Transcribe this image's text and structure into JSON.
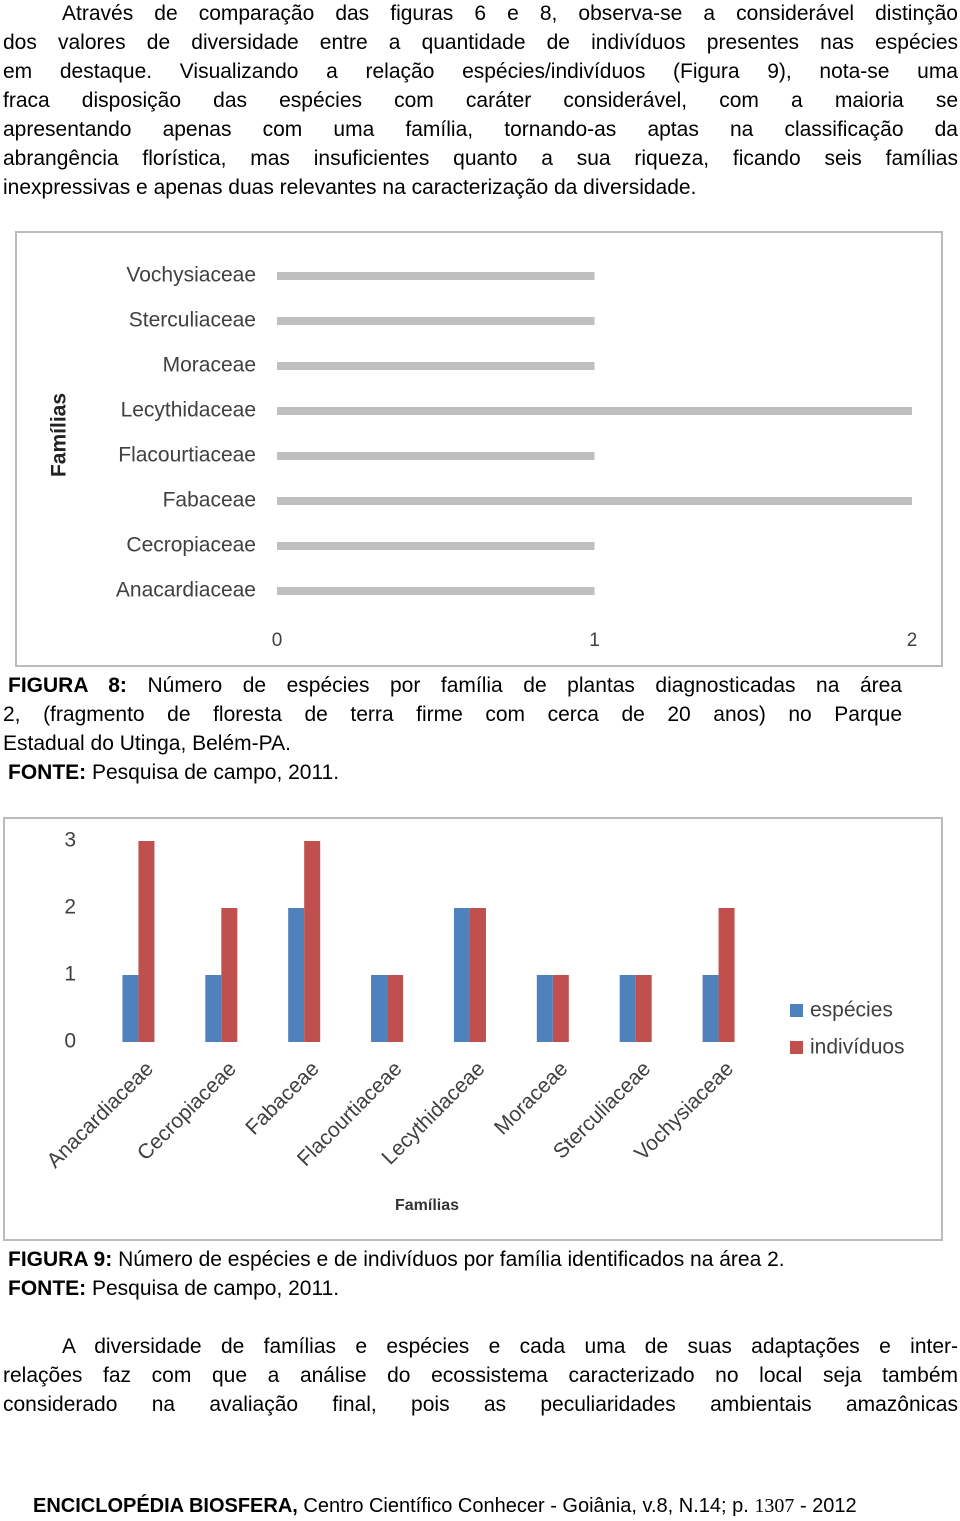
{
  "paragraph_1": {
    "lines": [
      "Através de comparação das figuras 6 e 8, observa-se a considerável distinção",
      "dos valores de diversidade entre a quantidade de indivíduos presentes nas espécies",
      "em destaque. Visualizando a relação espécies/indivíduos (Figura 9), nota-se uma",
      "fraca disposição das espécies com caráter considerável, com a maioria se",
      "apresentando apenas com uma família, tornando-as aptas na classificação da",
      "abrangência florística, mas insuficientes quanto a sua riqueza, ficando seis famílias",
      "inexpressivas e apenas duas relevantes na caracterização da diversidade."
    ]
  },
  "chart_data": [
    {
      "type": "hbar",
      "ylabel": "Famílias",
      "categories": [
        "Vochysiaceae",
        "Sterculiaceae",
        "Moraceae",
        "Lecythidaceae",
        "Flacourtiaceae",
        "Fabaceae",
        "Cecropiaceae",
        "Anacardiaceae"
      ],
      "values": [
        1,
        1,
        1,
        2,
        1,
        2,
        1,
        1
      ],
      "color": "#bfbfbf",
      "xlim": [
        0,
        2
      ],
      "xticks": [
        0,
        1,
        2
      ]
    },
    {
      "type": "grouped_bar",
      "xlabel": "Famílias",
      "categories": [
        "Anacardiaceae",
        "Cecropiaceae",
        "Fabaceae",
        "Flacourtiaceae",
        "Lecythidaceae",
        "Moraceae",
        "Sterculiaceae",
        "Vochysiaceae"
      ],
      "series": [
        {
          "name": "espécies",
          "color": "#4f81bd",
          "values": [
            1,
            1,
            2,
            1,
            2,
            1,
            1,
            1
          ]
        },
        {
          "name": "indivíduos",
          "color": "#c0504d",
          "values": [
            3,
            2,
            3,
            1,
            2,
            1,
            1,
            2
          ]
        }
      ],
      "ylim": [
        0,
        3
      ],
      "yticks": [
        0,
        1,
        2,
        3
      ],
      "legend": "right"
    }
  ],
  "figure_8_caption": {
    "label": "FIGURA 8:",
    "lines": [
      "Número de espécies por família de plantas diagnosticadas na área",
      "2, (fragmento de floresta de terra firme com cerca de 20 anos) no Parque",
      "Estadual do Utinga, Belém-PA."
    ],
    "source_label": "FONTE:",
    "source": "Pesquisa de campo, 2011."
  },
  "figure_9_caption": {
    "label": "FIGURA 9:",
    "text": "Número de espécies e de indivíduos por família identificados na área 2.",
    "source_label": "FONTE:",
    "source": "Pesquisa de campo, 2011."
  },
  "paragraph_2": {
    "lines": [
      "A diversidade de famílias e espécies e cada uma de suas adaptações e inter-",
      "relações faz com que a análise do ecossistema caracterizado no local seja também",
      "considerado na avaliação final, pois as peculiaridades ambientais amazônicas"
    ]
  },
  "footer": {
    "journal": "ENCICLOPÉDIA BIOSFERA,",
    "details": "Centro Científico Conhecer - Goiânia, v.8, N.14; p.",
    "page": "1307",
    "year": "- 2012"
  }
}
